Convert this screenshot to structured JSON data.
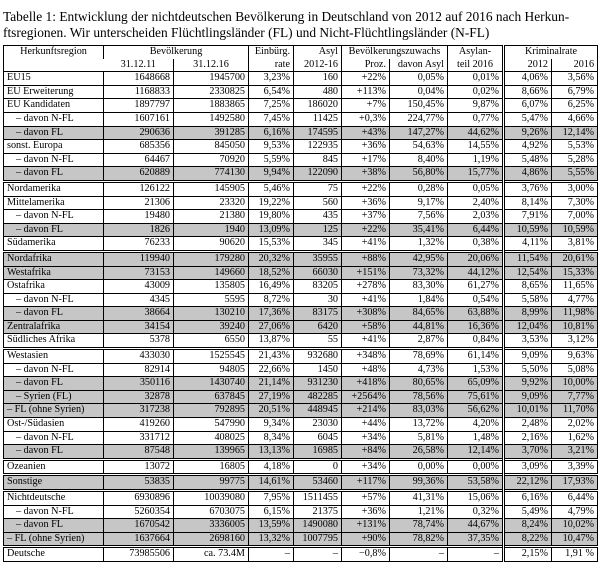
{
  "caption": {
    "line1": "Tabelle 1: Entwicklung der nichtdeutschen Bevölkerung in Deutschland von 2012 auf 2016 nach Herkun-",
    "line2": "ftsregionen. Wir unterscheiden Flüchtlingsländer (FL) und Nicht-Flüchtlingsländer (N-FL)"
  },
  "table": {
    "header": {
      "region": "Herkunftsregion",
      "bevoelkerung": "Bevölkerung",
      "bev_sub1": "31.12.11",
      "bev_sub2": "31.12.16",
      "einbuerg_line1": "Einbürg.",
      "einbuerg_line2": "rate",
      "asyl_line1": "Asyl",
      "asyl_line2": "2012-16",
      "zuwachs": "Bevölkerungszuwachs",
      "zuwachs_sub1": "Proz.",
      "zuwachs_sub2": "davon Asyl",
      "asylanteil_line1": "Asylan-",
      "asylanteil_line2": "teil 2016",
      "kriminalrate": "Kriminalrate",
      "krim_sub1": "2012",
      "krim_sub2": "2016"
    },
    "colkeys": [
      "bev-31-12-11",
      "bev-31-12-16",
      "einbuerg-rate",
      "asyl-2012-16",
      "zuwachs-proz",
      "zuwachs-davon-asyl",
      "asylanteil-2016",
      "kriminalrate-2012",
      "kriminalrate-2016"
    ],
    "rows": [
      {
        "label": "EU15",
        "indent": 0,
        "shaded": false,
        "sep": "single",
        "values": [
          "1648668",
          "1945700",
          "3,23%",
          "160",
          "+22%",
          "0,05%",
          "0,01%",
          "4,06%",
          "3,56%"
        ]
      },
      {
        "label": "EU Erweiterung",
        "indent": 0,
        "shaded": false,
        "sep": "single",
        "values": [
          "1168833",
          "2330825",
          "6,54%",
          "480",
          "+113%",
          "0,04%",
          "0,02%",
          "8,66%",
          "6,79%"
        ]
      },
      {
        "label": "EU Kandidaten",
        "indent": 0,
        "shaded": false,
        "sep": "single",
        "values": [
          "1897797",
          "1883865",
          "7,25%",
          "186020",
          "+7%",
          "150,45%",
          "9,87%",
          "6,07%",
          "6,25%"
        ]
      },
      {
        "label": "– davon N-FL",
        "indent": 1,
        "shaded": false,
        "sep": "single",
        "values": [
          "1607161",
          "1492580",
          "7,45%",
          "11425",
          "+0,3%",
          "224,77%",
          "0,77%",
          "5,47%",
          "4,66%"
        ]
      },
      {
        "label": "– davon FL",
        "indent": 1,
        "shaded": true,
        "sep": "single",
        "values": [
          "290636",
          "391285",
          "6,16%",
          "174595",
          "+43%",
          "147,27%",
          "44,62%",
          "9,26%",
          "12,14%"
        ]
      },
      {
        "label": "sonst. Europa",
        "indent": 0,
        "shaded": false,
        "sep": "single",
        "values": [
          "685356",
          "845050",
          "9,53%",
          "122935",
          "+36%",
          "54,63%",
          "14,55%",
          "4,92%",
          "5,53%"
        ]
      },
      {
        "label": "– davon N-FL",
        "indent": 1,
        "shaded": false,
        "sep": "single",
        "values": [
          "64467",
          "70920",
          "5,59%",
          "845",
          "+17%",
          "8,40%",
          "1,19%",
          "5,48%",
          "5,28%"
        ]
      },
      {
        "label": "– davon FL",
        "indent": 1,
        "shaded": true,
        "sep": "single",
        "values": [
          "620889",
          "774130",
          "9,94%",
          "122090",
          "+38%",
          "56,80%",
          "15,77%",
          "4,86%",
          "5,55%"
        ]
      },
      {
        "label": "Nordamerika",
        "indent": 0,
        "shaded": false,
        "sep": "double",
        "values": [
          "126122",
          "145905",
          "5,46%",
          "75",
          "+22%",
          "0,28%",
          "0,05%",
          "3,76%",
          "3,00%"
        ]
      },
      {
        "label": "Mittelamerika",
        "indent": 0,
        "shaded": false,
        "sep": "single",
        "values": [
          "21306",
          "23320",
          "19,22%",
          "560",
          "+36%",
          "9,17%",
          "2,40%",
          "8,14%",
          "7,30%"
        ]
      },
      {
        "label": "– davon N-FL",
        "indent": 1,
        "shaded": false,
        "sep": "single",
        "values": [
          "19480",
          "21380",
          "19,80%",
          "435",
          "+37%",
          "7,56%",
          "2,03%",
          "7,91%",
          "7,00%"
        ]
      },
      {
        "label": "– davon FL",
        "indent": 1,
        "shaded": true,
        "sep": "single",
        "values": [
          "1826",
          "1940",
          "13,09%",
          "125",
          "+22%",
          "35,41%",
          "6,44%",
          "10,59%",
          "10,59%"
        ]
      },
      {
        "label": "Südamerika",
        "indent": 0,
        "shaded": false,
        "sep": "single",
        "values": [
          "76233",
          "90620",
          "15,53%",
          "345",
          "+41%",
          "1,32%",
          "0,38%",
          "4,11%",
          "3,81%"
        ]
      },
      {
        "label": "Nordafrika",
        "indent": 0,
        "shaded": true,
        "sep": "double",
        "values": [
          "119940",
          "179280",
          "20,32%",
          "35955",
          "+88%",
          "42,95%",
          "20,06%",
          "11,54%",
          "20,61%"
        ]
      },
      {
        "label": "Westafrika",
        "indent": 0,
        "shaded": true,
        "sep": "single",
        "values": [
          "73153",
          "149660",
          "18,52%",
          "66030",
          "+151%",
          "73,32%",
          "44,12%",
          "12,54%",
          "15,33%"
        ]
      },
      {
        "label": "Ostafrika",
        "indent": 0,
        "shaded": false,
        "sep": "single",
        "values": [
          "43009",
          "135805",
          "16,49%",
          "83205",
          "+278%",
          "83,30%",
          "61,27%",
          "8,65%",
          "11,65%"
        ]
      },
      {
        "label": "– davon N-FL",
        "indent": 1,
        "shaded": false,
        "sep": "single",
        "values": [
          "4345",
          "5595",
          "8,72%",
          "30",
          "+41%",
          "1,84%",
          "0,54%",
          "5,58%",
          "4,77%"
        ]
      },
      {
        "label": "– davon FL",
        "indent": 1,
        "shaded": true,
        "sep": "single",
        "values": [
          "38664",
          "130210",
          "17,36%",
          "83175",
          "+308%",
          "84,65%",
          "63,88%",
          "8,99%",
          "11,98%"
        ]
      },
      {
        "label": "Zentralafrika",
        "indent": 0,
        "shaded": true,
        "sep": "single",
        "values": [
          "34154",
          "39240",
          "27,06%",
          "6420",
          "+58%",
          "44,81%",
          "16,36%",
          "12,04%",
          "10,81%"
        ]
      },
      {
        "label": "Südliches Afrika",
        "indent": 0,
        "shaded": false,
        "sep": "single",
        "values": [
          "5378",
          "6550",
          "13,87%",
          "55",
          "+41%",
          "2,87%",
          "0,84%",
          "3,53%",
          "3,12%"
        ]
      },
      {
        "label": "Westasien",
        "indent": 0,
        "shaded": false,
        "sep": "double",
        "values": [
          "433030",
          "1525545",
          "21,43%",
          "932680",
          "+348%",
          "78,69%",
          "61,14%",
          "9,09%",
          "9,63%"
        ]
      },
      {
        "label": "– davon N-FL",
        "indent": 1,
        "shaded": false,
        "sep": "single",
        "values": [
          "82914",
          "94805",
          "22,66%",
          "1450",
          "+48%",
          "4,73%",
          "1,53%",
          "5,50%",
          "5,08%"
        ]
      },
      {
        "label": "– davon FL",
        "indent": 1,
        "shaded": true,
        "sep": "single",
        "values": [
          "350116",
          "1430740",
          "21,14%",
          "931230",
          "+418%",
          "80,65%",
          "65,09%",
          "9,92%",
          "10,00%"
        ]
      },
      {
        "label": "– Syrien (FL)",
        "indent": 1,
        "shaded": true,
        "sep": "single",
        "values": [
          "32878",
          "637845",
          "27,19%",
          "482285",
          "+2564%",
          "78,56%",
          "75,61%",
          "9,09%",
          "7,77%"
        ]
      },
      {
        "label": "– FL (ohne Syrien)",
        "indent": 0,
        "shaded": true,
        "sep": "single",
        "values": [
          "317238",
          "792895",
          "20,51%",
          "448945",
          "+214%",
          "83,03%",
          "56,62%",
          "10,01%",
          "11,70%"
        ]
      },
      {
        "label": "Ost-/Südasien",
        "indent": 0,
        "shaded": false,
        "sep": "single",
        "values": [
          "419260",
          "547990",
          "9,34%",
          "23030",
          "+44%",
          "13,72%",
          "4,20%",
          "2,48%",
          "2,02%"
        ]
      },
      {
        "label": "– davon N-FL",
        "indent": 1,
        "shaded": false,
        "sep": "single",
        "values": [
          "331712",
          "408025",
          "8,34%",
          "6045",
          "+34%",
          "5,81%",
          "1,48%",
          "2,16%",
          "1,62%"
        ]
      },
      {
        "label": "– davon FL",
        "indent": 1,
        "shaded": true,
        "sep": "single",
        "values": [
          "87548",
          "139965",
          "13,13%",
          "16985",
          "+84%",
          "26,58%",
          "12,14%",
          "3,70%",
          "3,21%"
        ]
      },
      {
        "label": "Ozeanien",
        "indent": 0,
        "shaded": false,
        "sep": "double",
        "values": [
          "13072",
          "16805",
          "4,18%",
          "0",
          "+34%",
          "0,00%",
          "0,00%",
          "3,09%",
          "3,39%"
        ]
      },
      {
        "label": "Sonstige",
        "indent": 0,
        "shaded": true,
        "sep": "double",
        "values": [
          "53835",
          "99775",
          "14,61%",
          "53460",
          "+117%",
          "99,36%",
          "53,58%",
          "22,12%",
          "17,93%"
        ]
      },
      {
        "label": "Nichtdeutsche",
        "indent": 0,
        "shaded": false,
        "sep": "double",
        "values": [
          "6930896",
          "10039080",
          "7,95%",
          "1511455",
          "+57%",
          "41,31%",
          "15,06%",
          "6,16%",
          "6,44%"
        ]
      },
      {
        "label": "– davon N-FL",
        "indent": 1,
        "shaded": false,
        "sep": "single",
        "values": [
          "5260354",
          "6703075",
          "6,15%",
          "21375",
          "+36%",
          "1,21%",
          "0,32%",
          "5,49%",
          "4,79%"
        ]
      },
      {
        "label": "– davon FL",
        "indent": 1,
        "shaded": true,
        "sep": "single",
        "values": [
          "1670542",
          "3336005",
          "13,59%",
          "1490080",
          "+131%",
          "78,74%",
          "44,67%",
          "8,24%",
          "10,02%"
        ]
      },
      {
        "label": "– FL (ohne Syrien)",
        "indent": 0,
        "shaded": true,
        "sep": "single",
        "values": [
          "1637664",
          "2698160",
          "13,32%",
          "1007795",
          "+90%",
          "78,82%",
          "37,35%",
          "8,22%",
          "10,47%"
        ]
      },
      {
        "label": "Deutsche",
        "indent": 0,
        "shaded": false,
        "sep": "double",
        "values": [
          "73985506",
          "ca. 73.4M",
          "–",
          "–",
          "−0,8%",
          "–",
          "–",
          "2,15%",
          "1,91 %"
        ]
      }
    ]
  }
}
